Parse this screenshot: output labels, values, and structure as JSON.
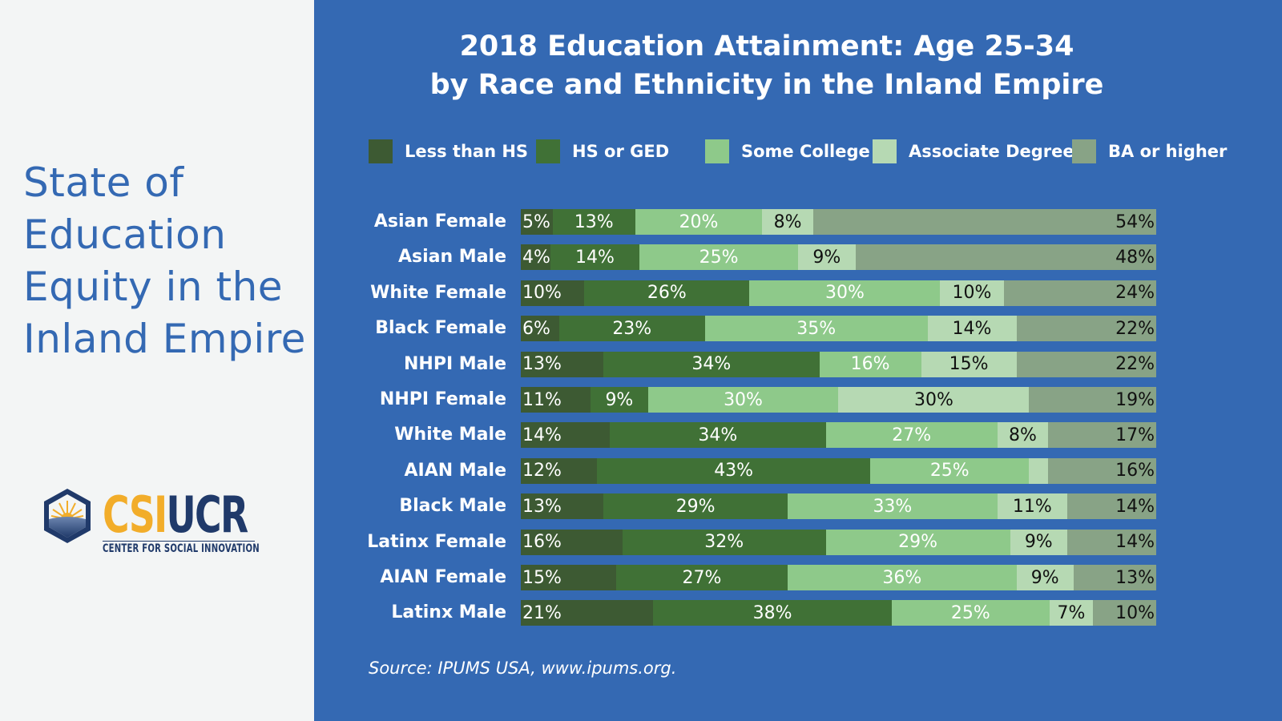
{
  "sidebar": {
    "heading_lines": [
      "State of",
      "Education",
      "Equity in the",
      "Inland Empire"
    ],
    "logo": {
      "icon": "sunrise-hexagon-icon",
      "brand_part1": "CSI",
      "brand_part2": "UCR",
      "subtitle": "CENTER FOR SOCIAL INNOVATION",
      "colors": {
        "gold": "#f2ad2a",
        "navy": "#203a6a"
      }
    }
  },
  "colors": {
    "panel_background": "#3469b3",
    "sidebar_background": "#f3f5f5",
    "heading": "#3469b3"
  },
  "chart_data": {
    "type": "bar",
    "orientation": "horizontal",
    "stacked": true,
    "normalized_percent": true,
    "title": [
      "2018 Education Attainment: Age 25-34",
      "by Race and Ethnicity in the Inland Empire"
    ],
    "xlabel": "",
    "ylabel": "",
    "xlim": [
      0,
      100
    ],
    "grid": false,
    "legend_position": "top",
    "source": "Source: IPUMS USA, www.ipums.org.",
    "categories": [
      "Asian Female",
      "Asian Male",
      "White Female",
      "Black Female",
      "NHPI Male",
      "NHPI Female",
      "White Male",
      "AIAN Male",
      "Black Male",
      "Latinx Female",
      "AIAN Female",
      "Latinx Male"
    ],
    "series": [
      {
        "name": "Less than HS",
        "color": "#3d5a33",
        "label_color": "#ffffff",
        "values": [
          5,
          4,
          10,
          6,
          13,
          11,
          14,
          12,
          13,
          16,
          15,
          21
        ]
      },
      {
        "name": "HS or GED",
        "color": "#407136",
        "label_color": "#ffffff",
        "values": [
          13,
          14,
          26,
          23,
          34,
          9,
          34,
          43,
          29,
          32,
          27,
          38
        ]
      },
      {
        "name": "Some College",
        "color": "#8ec98a",
        "label_color": "#ffffff",
        "values": [
          20,
          25,
          30,
          35,
          16,
          30,
          27,
          25,
          33,
          29,
          36,
          25
        ]
      },
      {
        "name": "Associate Degree",
        "color": "#b6d9b3",
        "label_color": "#111111",
        "values": [
          8,
          9,
          10,
          14,
          15,
          30,
          8,
          3,
          11,
          9,
          9,
          7
        ]
      },
      {
        "name": "BA or higher",
        "color": "#88a386",
        "label_color": "#111111",
        "values": [
          54,
          48,
          24,
          22,
          22,
          19,
          17,
          16,
          14,
          14,
          13,
          10
        ]
      }
    ],
    "data_labels": [
      [
        "5%",
        "13%",
        "20%",
        "8%",
        "54%"
      ],
      [
        "4%",
        "14%",
        "25%",
        "9%",
        "48%"
      ],
      [
        "10%",
        "26%",
        "30%",
        "10%",
        "24%"
      ],
      [
        "6%",
        "23%",
        "35%",
        "14%",
        "22%"
      ],
      [
        "13%",
        "34%",
        "16%",
        "15%",
        "22%"
      ],
      [
        "11%",
        "9%",
        "30%",
        "30%",
        "19%"
      ],
      [
        "14%",
        "34%",
        "27%",
        "8%",
        "17%"
      ],
      [
        "12%",
        "43%",
        "25%",
        "",
        "16%"
      ],
      [
        "13%",
        "29%",
        "33%",
        "11%",
        "14%"
      ],
      [
        "16%",
        "32%",
        "29%",
        "9%",
        "14%"
      ],
      [
        "15%",
        "27%",
        "36%",
        "9%",
        "13%"
      ],
      [
        "21%",
        "38%",
        "25%",
        "7%",
        "10%"
      ]
    ]
  }
}
